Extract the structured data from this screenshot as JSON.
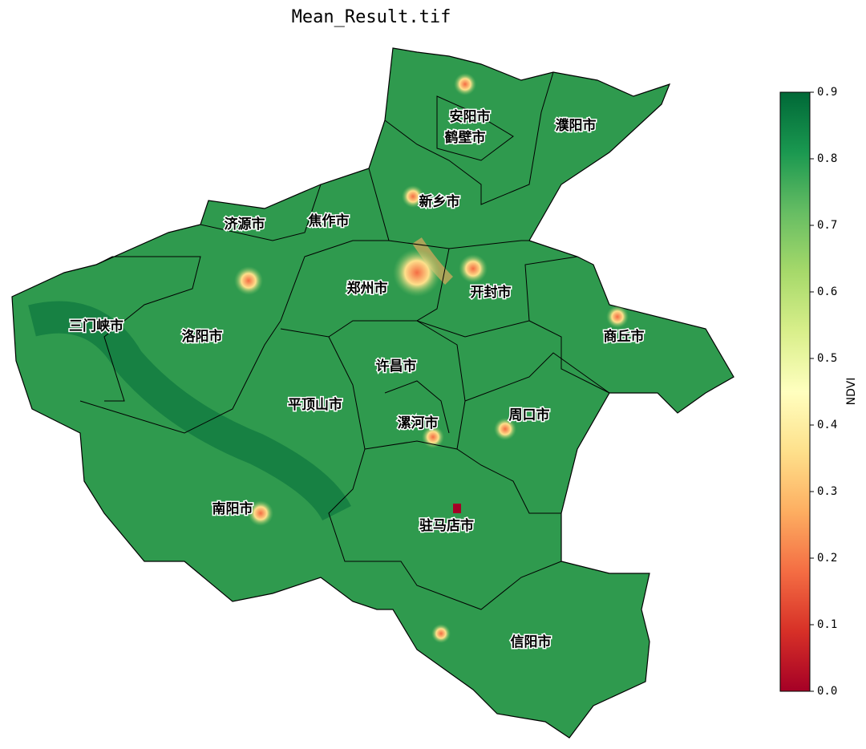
{
  "title": "Mean_Result.tif",
  "regions": [
    {
      "label": "安阳市"
    },
    {
      "label": "鹤壁市"
    },
    {
      "label": "濮阳市"
    },
    {
      "label": "新乡市"
    },
    {
      "label": "济源市"
    },
    {
      "label": "焦作市"
    },
    {
      "label": "郑州市"
    },
    {
      "label": "开封市"
    },
    {
      "label": "三门峡市"
    },
    {
      "label": "洛阳市"
    },
    {
      "label": "商丘市"
    },
    {
      "label": "许昌市"
    },
    {
      "label": "平顶山市"
    },
    {
      "label": "漯河市"
    },
    {
      "label": "周口市"
    },
    {
      "label": "南阳市"
    },
    {
      "label": "驻马店市"
    },
    {
      "label": "信阳市"
    }
  ],
  "colorbar": {
    "label": "NDVI",
    "lim": [
      0,
      0.9
    ],
    "ticks": [
      {
        "value": 0,
        "label": "0.0"
      },
      0.1,
      0.2,
      0.3,
      0.4,
      0.5,
      0.6,
      0.7,
      0.8,
      0.9
    ]
  }
}
